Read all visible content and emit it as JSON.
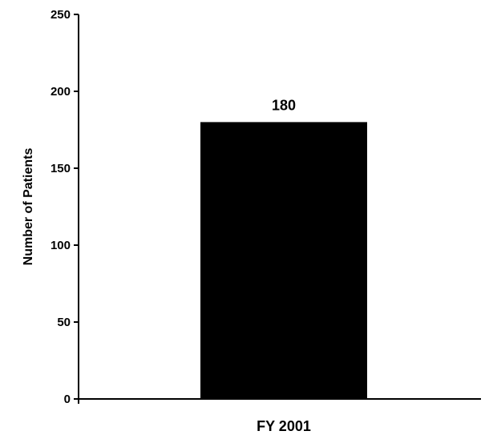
{
  "chart_data": {
    "type": "bar",
    "categories": [
      "FY 2001"
    ],
    "values": [
      180
    ],
    "data_labels": [
      "180"
    ],
    "title": "",
    "xlabel": "",
    "ylabel": "Number of Patients",
    "ylim": [
      0,
      250
    ],
    "yticks": [
      0,
      50,
      100,
      150,
      200,
      250
    ],
    "ytick_labels": [
      "0",
      "50",
      "100",
      "150",
      "200",
      "250"
    ],
    "grid": false,
    "legend": "none",
    "bar_color": "#000000",
    "axis_color": "#000000"
  }
}
